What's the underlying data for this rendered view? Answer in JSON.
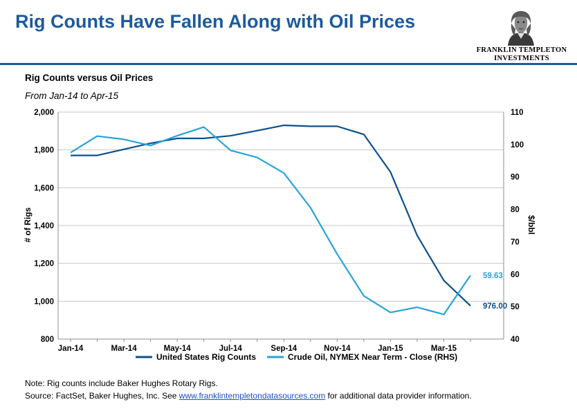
{
  "header": {
    "title": "Rig Counts Have Fallen Along with Oil Prices",
    "logo_line1": "FRANKLIN TEMPLETON",
    "logo_line2": "INVESTMENTS",
    "brand_color": "#1d5a9c"
  },
  "footer": {
    "note": "Note: Rig counts include Baker Hughes Rotary Rigs.",
    "source_prefix": "Source: FactSet, Baker Hughes, Inc. See ",
    "source_link": "www.franklintempletondatasources.com",
    "source_suffix": " for additional data provider information."
  },
  "chart_data": {
    "type": "line",
    "title": "Rig Counts versus Oil Prices",
    "subtitle": "From Jan-14 to Apr-15",
    "ylabel": "# of Rigs",
    "y2label": "$/bbl",
    "ylim": [
      800,
      2000
    ],
    "yticks": [
      "800",
      "1,000",
      "1,200",
      "1,400",
      "1,600",
      "1,800",
      "2,000"
    ],
    "y2lim": [
      40,
      110
    ],
    "y2ticks": [
      "40",
      "50",
      "60",
      "70",
      "80",
      "90",
      "100",
      "110"
    ],
    "x": [
      "Jan-14",
      "Feb-14",
      "Mar-14",
      "Apr-14",
      "May-14",
      "Jun-14",
      "Jul-14",
      "Aug-14",
      "Sep-14",
      "Oct-14",
      "Nov-14",
      "Dec-14",
      "Jan-15",
      "Feb-15",
      "Mar-15",
      "Apr-15"
    ],
    "xticks": [
      "Jan-14",
      "Mar-14",
      "May-14",
      "Jul-14",
      "Sep-14",
      "Nov-14",
      "Jan-15",
      "Mar-15"
    ],
    "grid": true,
    "legend_position": "bottom",
    "series": [
      {
        "name": "United States Rig Counts",
        "axis": "left",
        "color": "#0d4f8b",
        "values": [
          1771,
          1771,
          1803,
          1835,
          1861,
          1861,
          1875,
          1902,
          1930,
          1925,
          1925,
          1882,
          1683,
          1348,
          1110,
          976
        ],
        "end_label": "976.00"
      },
      {
        "name": "Crude Oil, NYMEX Near Term - Close (RHS)",
        "axis": "right",
        "color": "#27a3d8",
        "values": [
          97.5,
          102.6,
          101.6,
          99.7,
          102.7,
          105.4,
          98.2,
          96.0,
          91.2,
          80.5,
          66.2,
          53.3,
          48.2,
          49.8,
          47.6,
          59.63
        ],
        "end_label": "59.63"
      }
    ]
  }
}
